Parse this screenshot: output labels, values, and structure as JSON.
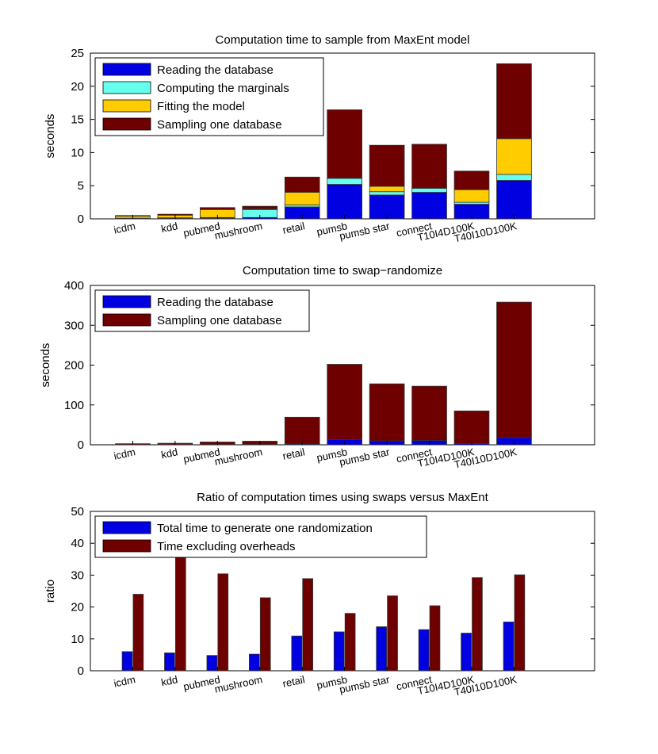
{
  "chart_data": [
    {
      "type": "bar",
      "stacked": true,
      "title": "Computation time to sample from MaxEnt model",
      "xlabel": "",
      "ylabel": "seconds",
      "ylim": [
        0,
        25
      ],
      "yticks": [
        0,
        5,
        10,
        15,
        20,
        25
      ],
      "categories": [
        "icdm",
        "kdd",
        "pubmed",
        "mushroom",
        "retail",
        "pumsb",
        "pumsb star",
        "connect",
        "T10I4D100K",
        "T40I10D100K"
      ],
      "series": [
        {
          "name": "Reading the database",
          "color": "#0000e0",
          "values": [
            0.05,
            0.1,
            0.1,
            0.2,
            1.8,
            5.2,
            3.6,
            4.0,
            2.2,
            5.8
          ]
        },
        {
          "name": "Computing the marginals",
          "color": "#66ffee",
          "values": [
            0.05,
            0.05,
            0.1,
            1.2,
            0.3,
            0.9,
            0.5,
            0.6,
            0.3,
            0.9
          ]
        },
        {
          "name": "Fitting the model",
          "color": "#ffcc00",
          "values": [
            0.3,
            0.4,
            1.2,
            0.1,
            1.9,
            0.05,
            0.8,
            0.05,
            1.9,
            5.4
          ]
        },
        {
          "name": "Sampling one database",
          "color": "#6e0000",
          "values": [
            0.1,
            0.15,
            0.3,
            0.4,
            2.3,
            10.3,
            6.2,
            6.6,
            2.8,
            11.3
          ]
        }
      ],
      "legend_location": "top-left"
    },
    {
      "type": "bar",
      "stacked": true,
      "title": "Computation time to swap−randomize",
      "xlabel": "",
      "ylabel": "seconds",
      "ylim": [
        0,
        400
      ],
      "yticks": [
        0,
        100,
        200,
        300,
        400
      ],
      "categories": [
        "icdm",
        "kdd",
        "pubmed",
        "mushroom",
        "retail",
        "pumsb",
        "pumsb star",
        "connect",
        "T10I4D100K",
        "T40I10D100K"
      ],
      "series": [
        {
          "name": "Reading the database",
          "color": "#0000e0",
          "values": [
            0.2,
            0.3,
            0.5,
            1.0,
            2.0,
            13,
            10,
            11,
            3,
            18
          ]
        },
        {
          "name": "Sampling one database",
          "color": "#6e0000",
          "values": [
            2.5,
            3.5,
            6.5,
            8.0,
            67,
            189,
            143,
            136,
            82,
            340
          ]
        }
      ],
      "legend_location": "top-left"
    },
    {
      "type": "bar",
      "stacked": false,
      "title": "Ratio of computation times using swaps versus MaxEnt",
      "xlabel": "",
      "ylabel": "ratio",
      "ylim": [
        0,
        50
      ],
      "yticks": [
        0,
        10,
        20,
        30,
        40,
        50
      ],
      "categories": [
        "icdm",
        "kdd",
        "pubmed",
        "mushroom",
        "retail",
        "pumsb",
        "pumsb star",
        "connect",
        "T10I4D100K",
        "T40I10D100K"
      ],
      "series": [
        {
          "name": "Total time to generate one randomization",
          "color": "#0000e0",
          "values": [
            6.0,
            5.6,
            4.8,
            5.2,
            10.9,
            12.2,
            13.8,
            12.9,
            11.8,
            15.3
          ]
        },
        {
          "name": "Time excluding overheads",
          "color": "#6e0000",
          "values": [
            24.0,
            36.0,
            30.4,
            22.9,
            28.9,
            18.0,
            23.5,
            20.4,
            29.2,
            30.1
          ]
        }
      ],
      "legend_location": "top-left"
    }
  ]
}
